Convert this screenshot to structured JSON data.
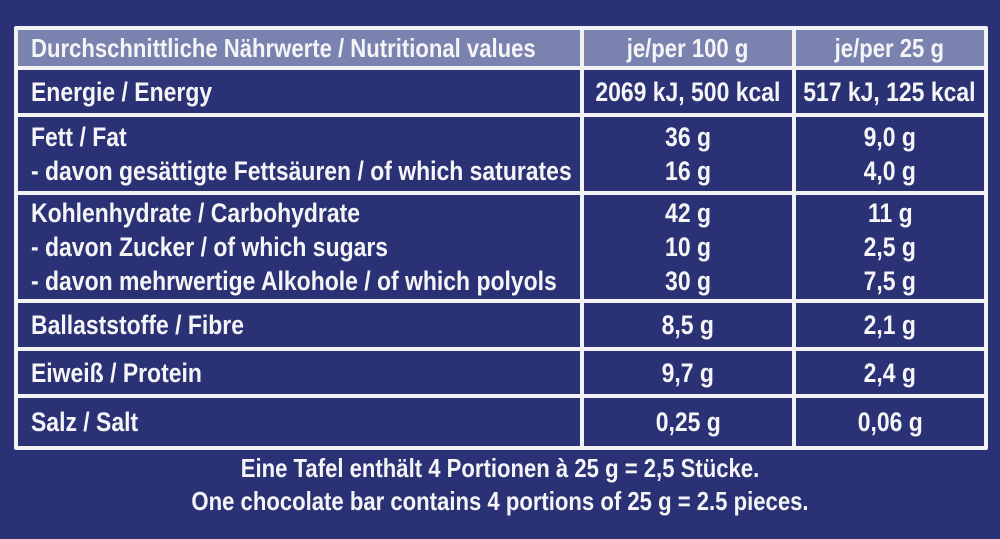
{
  "colors": {
    "page_background": "#2a3174",
    "row_background": "#2a3174",
    "header_background": "#7a82af",
    "grid_border": "#f2f2f4",
    "text": "#f5f5f8"
  },
  "table": {
    "header": {
      "label": "Durchschnittliche Nährwerte / Nutritional values",
      "col_per_100g": "je/per 100 g",
      "col_per_25g": "je/per 25 g"
    },
    "rows": [
      {
        "lines": [
          "Energie / Energy"
        ],
        "per_100g": [
          "2069 kJ, 500 kcal"
        ],
        "per_25g": [
          "517 kJ, 125 kcal"
        ]
      },
      {
        "lines": [
          "Fett / Fat",
          "- davon gesättigte Fettsäuren / of which saturates"
        ],
        "per_100g": [
          "36 g",
          "16 g"
        ],
        "per_25g": [
          "9,0 g",
          "4,0 g"
        ]
      },
      {
        "lines": [
          "Kohlenhydrate / Carbohydrate",
          "- davon Zucker / of which sugars",
          "- davon mehrwertige Alkohole / of which polyols"
        ],
        "per_100g": [
          "42 g",
          "10 g",
          "30 g"
        ],
        "per_25g": [
          "11 g",
          "2,5 g",
          "7,5 g"
        ]
      },
      {
        "lines": [
          "Ballaststoffe / Fibre"
        ],
        "per_100g": [
          "8,5 g"
        ],
        "per_25g": [
          "2,1 g"
        ]
      },
      {
        "lines": [
          "Eiweiß / Protein"
        ],
        "per_100g": [
          "9,7 g"
        ],
        "per_25g": [
          "2,4 g"
        ]
      },
      {
        "lines": [
          "Salz / Salt"
        ],
        "per_100g": [
          "0,25 g"
        ],
        "per_25g": [
          "0,06 g"
        ]
      }
    ]
  },
  "footer": {
    "line_de": "Eine Tafel enthält 4 Portionen à 25 g = 2,5 Stücke.",
    "line_en": "One chocolate bar contains 4 portions of 25 g = 2.5 pieces."
  }
}
